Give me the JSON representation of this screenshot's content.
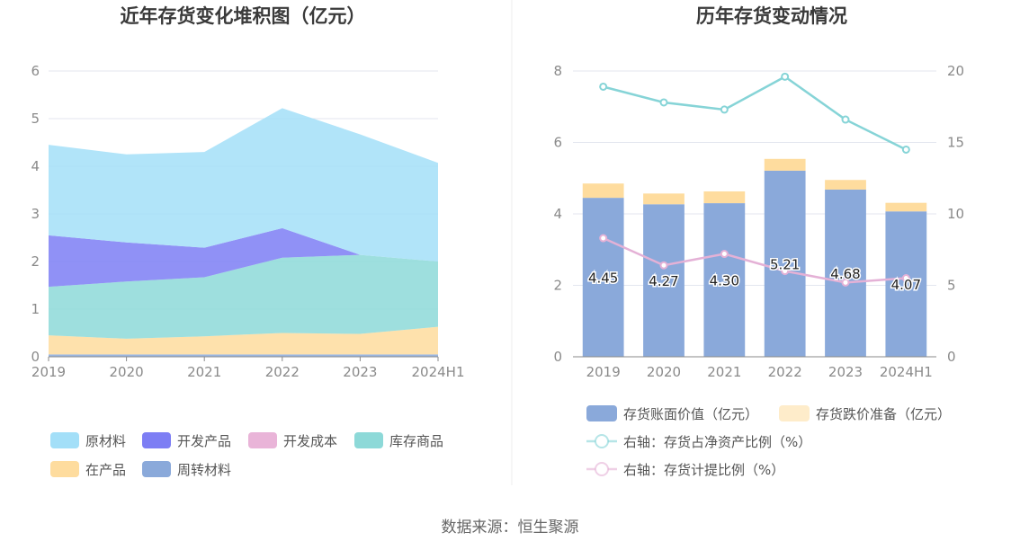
{
  "chart_data": [
    {
      "type": "area",
      "title": "近年存货变化堆积图（亿元）",
      "categories": [
        "2019",
        "2020",
        "2021",
        "2022",
        "2023",
        "2024H1"
      ],
      "stacked": true,
      "ylim": [
        0,
        6
      ],
      "yticks": [
        "0",
        "1",
        "2",
        "3",
        "4",
        "5",
        "6"
      ],
      "grid": true,
      "series": [
        {
          "name": "周转材料",
          "color": "#8aa9da",
          "values": [
            0.05,
            0.05,
            0.05,
            0.05,
            0.05,
            0.05
          ]
        },
        {
          "name": "在产品",
          "color": "#fedc9e",
          "values": [
            0.4,
            0.33,
            0.38,
            0.45,
            0.43,
            0.58
          ]
        },
        {
          "name": "库存商品",
          "color": "#8dd9d8",
          "values": [
            1.02,
            1.2,
            1.24,
            1.58,
            1.66,
            1.37
          ]
        },
        {
          "name": "开发成本",
          "color": "#e9b4d8",
          "values": [
            0.0,
            0.0,
            0.0,
            0.0,
            0.0,
            0.0
          ]
        },
        {
          "name": "开发产品",
          "color": "#7d7ef4",
          "values": [
            1.08,
            0.82,
            0.62,
            0.62,
            0.0,
            0.0
          ]
        },
        {
          "name": "原材料",
          "color": "#a3dff8",
          "values": [
            1.9,
            1.85,
            2.01,
            2.52,
            2.53,
            2.07
          ]
        }
      ],
      "legend": [
        {
          "name": "原材料",
          "color": "#a3dff8"
        },
        {
          "name": "开发产品",
          "color": "#7d7ef4"
        },
        {
          "name": "开发成本",
          "color": "#e9b4d8"
        },
        {
          "name": "库存商品",
          "color": "#8dd9d8"
        },
        {
          "name": "在产品",
          "color": "#fedc9e"
        },
        {
          "name": "周转材料",
          "color": "#8aa9da"
        }
      ]
    },
    {
      "type": "bar",
      "title": "历年存货变动情况",
      "categories": [
        "2019",
        "2020",
        "2021",
        "2022",
        "2023",
        "2024H1"
      ],
      "ylim": [
        0,
        8
      ],
      "yticks": [
        "0",
        "2",
        "4",
        "6",
        "8"
      ],
      "y2lim": [
        0,
        20
      ],
      "y2ticks": [
        "0",
        "5",
        "10",
        "15",
        "20"
      ],
      "grid": true,
      "bars": [
        {
          "name": "存货账面价值（亿元）",
          "color": "#8aa9da",
          "values": [
            4.45,
            4.27,
            4.3,
            5.21,
            4.68,
            4.07
          ],
          "labels": [
            "4.45",
            "4.27",
            "4.30",
            "5.21",
            "4.68",
            "4.07"
          ]
        },
        {
          "name": "存货跌价准备（亿元）",
          "color": "#fedc9e",
          "values": [
            0.4,
            0.3,
            0.33,
            0.33,
            0.27,
            0.24
          ]
        }
      ],
      "lines": [
        {
          "name": "右轴：存货占净资产比例（%）",
          "color": "#86d4d7",
          "values": [
            18.9,
            17.8,
            17.3,
            19.6,
            16.6,
            14.5
          ]
        },
        {
          "name": "右轴：存货计提比例（%）",
          "color": "#e4b1d6",
          "values": [
            8.3,
            6.4,
            7.2,
            6.0,
            5.2,
            5.5
          ]
        }
      ]
    }
  ],
  "footer": {
    "source": "数据来源：恒生聚源"
  }
}
